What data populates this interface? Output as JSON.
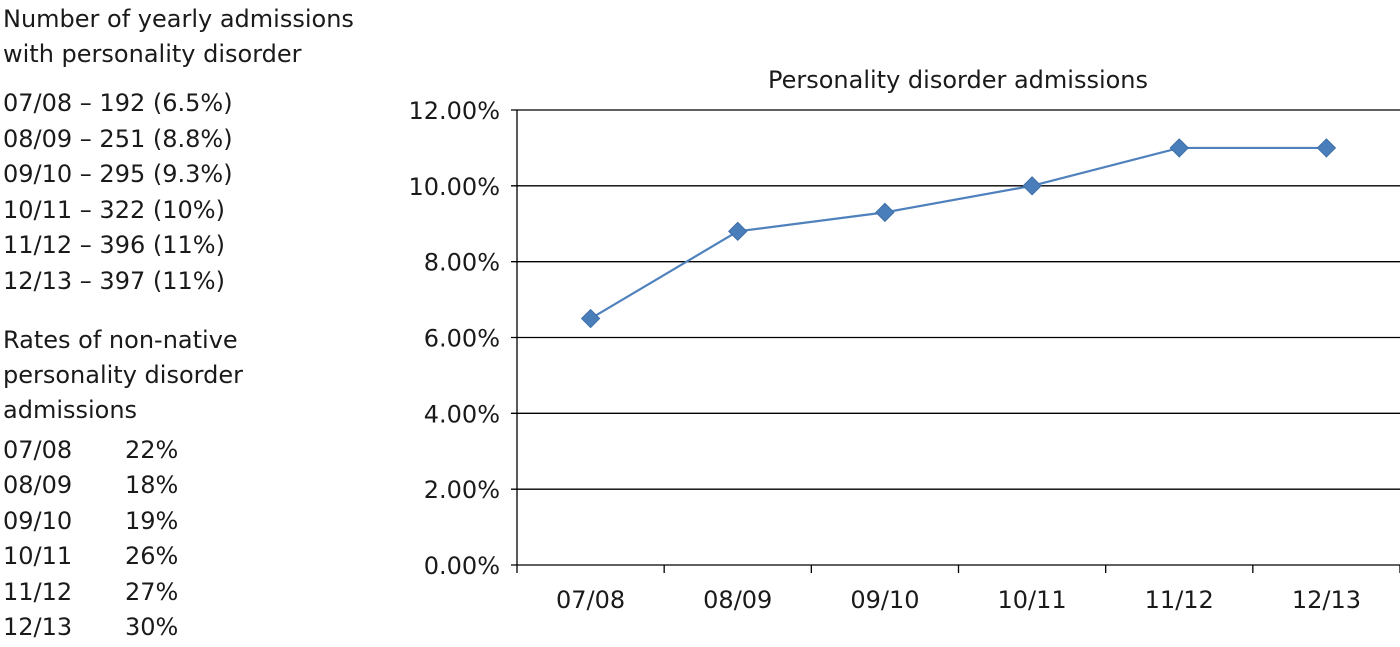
{
  "left_panel": {
    "admissions_heading": "Number of yearly admissions with personality disorder",
    "admissions": [
      "07/08 – 192 (6.5%)",
      "08/09 – 251 (8.8%)",
      "09/10 – 295 (9.3%)",
      "10/11 – 322 (10%)",
      "11/12 – 396 (11%)",
      "12/13 – 397 (11%)"
    ],
    "nonnative_heading": "Rates of non-native personality disorder admissions",
    "nonnative": [
      {
        "period": "07/08",
        "rate": "22%"
      },
      {
        "period": "08/09",
        "rate": "18%"
      },
      {
        "period": "09/10",
        "rate": "19%"
      },
      {
        "period": "10/11",
        "rate": "26%"
      },
      {
        "period": "11/12",
        "rate": "27%"
      },
      {
        "period": "12/13",
        "rate": "30%"
      }
    ]
  },
  "chart_data": {
    "type": "line",
    "title": "Personality disorder admissions",
    "categories": [
      "07/08",
      "08/09",
      "09/10",
      "10/11",
      "11/12",
      "12/13"
    ],
    "series": [
      {
        "values": [
          6.5,
          8.8,
          9.3,
          10.0,
          11.0,
          11.0
        ]
      }
    ],
    "ylim": [
      0,
      12
    ],
    "yticks": [
      0,
      2,
      4,
      6,
      8,
      10,
      12
    ],
    "ytick_labels": [
      "0.00%",
      "2.00%",
      "4.00%",
      "6.00%",
      "8.00%",
      "10.00%",
      "12.00%"
    ],
    "xlabel": "",
    "ylabel": "",
    "grid": true,
    "marker": "diamond",
    "colors": {
      "line": "#4f81bd",
      "marker": "#4a7ebb",
      "grid": "#000000"
    }
  }
}
